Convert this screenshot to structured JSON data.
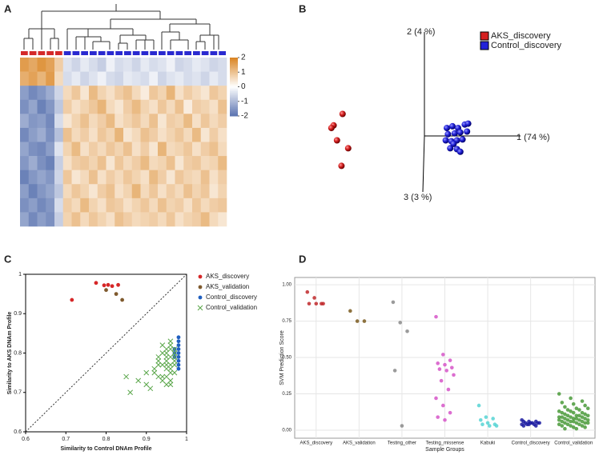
{
  "chart_data": [
    {
      "type": "heatmap",
      "panel_label": "A",
      "zlim": [
        -2,
        2
      ],
      "colorscale": [
        "#5b74b0",
        "#ffffff",
        "#d98320"
      ],
      "colorbar_ticks": [
        2,
        1,
        0,
        -1,
        -2
      ],
      "column_colors": [
        "#d42a2a",
        "#d42a2a",
        "#d42a2a",
        "#d42a2a",
        "#d42a2a",
        "#2a2ad0",
        "#2a2ad0",
        "#2a2ad0",
        "#2a2ad0",
        "#2a2ad0",
        "#2a2ad0",
        "#2a2ad0",
        "#2a2ad0",
        "#2a2ad0",
        "#2a2ad0",
        "#2a2ad0",
        "#2a2ad0",
        "#2a2ad0",
        "#2a2ad0",
        "#2a2ad0",
        "#2a2ad0",
        "#2a2ad0",
        "#2a2ad0",
        "#2a2ad0"
      ],
      "values": [
        [
          1.6,
          1.4,
          1.7,
          1.5,
          0.8,
          -0.4,
          -0.6,
          -0.3,
          -0.5,
          -0.7,
          -0.2,
          -0.5,
          -0.4,
          -0.6,
          -0.3,
          -0.5,
          -0.4,
          -0.2,
          -0.6,
          -0.5,
          -0.3,
          -0.4,
          -0.6,
          -0.5
        ],
        [
          1.3,
          1.5,
          1.2,
          1.6,
          0.6,
          -0.5,
          -0.3,
          -0.6,
          -0.4,
          -0.2,
          -0.5,
          -0.6,
          -0.3,
          -0.4,
          -0.5,
          -0.2,
          -0.6,
          -0.4,
          -0.3,
          -0.5,
          -0.4,
          -0.6,
          -0.3,
          -0.5
        ],
        [
          -1.4,
          -1.7,
          -1.5,
          -1.2,
          -0.6,
          0.6,
          0.9,
          0.4,
          1.1,
          0.7,
          0.5,
          0.8,
          1.0,
          0.6,
          0.3,
          0.9,
          0.7,
          1.2,
          0.5,
          0.8,
          0.6,
          0.4,
          0.9,
          0.7
        ],
        [
          -1.6,
          -1.3,
          -1.8,
          -1.5,
          -0.8,
          0.8,
          0.5,
          0.7,
          0.9,
          1.2,
          0.6,
          0.4,
          0.8,
          1.1,
          0.7,
          0.5,
          0.9,
          0.6,
          1.0,
          0.3,
          0.8,
          0.7,
          0.5,
          1.0
        ],
        [
          -1.2,
          -1.5,
          -1.4,
          -1.7,
          -0.5,
          0.4,
          0.7,
          1.0,
          0.6,
          0.8,
          1.1,
          0.5,
          0.7,
          0.9,
          0.6,
          1.0,
          0.4,
          0.8,
          0.7,
          1.1,
          0.5,
          0.9,
          0.6,
          0.8
        ],
        [
          -1.7,
          -1.4,
          -1.2,
          -1.6,
          -0.9,
          1.0,
          0.6,
          0.8,
          0.5,
          0.9,
          0.7,
          1.2,
          0.4,
          0.6,
          1.0,
          0.8,
          0.5,
          0.7,
          0.9,
          0.6,
          1.1,
          0.4,
          0.8,
          0.5
        ],
        [
          -1.3,
          -1.6,
          -1.7,
          -1.4,
          -0.4,
          0.7,
          1.1,
          0.5,
          0.8,
          0.6,
          0.9,
          0.7,
          1.0,
          0.5,
          0.8,
          0.4,
          1.2,
          0.6,
          0.7,
          0.9,
          0.5,
          0.8,
          1.0,
          0.6
        ],
        [
          -1.5,
          -1.2,
          -1.6,
          -1.8,
          -0.7,
          0.5,
          0.8,
          0.9,
          0.7,
          1.0,
          0.4,
          0.9,
          0.6,
          0.8,
          1.1,
          0.6,
          0.7,
          1.0,
          0.4,
          0.8,
          0.9,
          0.6,
          0.7,
          1.1
        ],
        [
          -1.8,
          -1.5,
          -1.3,
          -1.5,
          -0.6,
          0.9,
          0.4,
          0.6,
          1.0,
          0.5,
          0.8,
          0.6,
          0.9,
          0.7,
          0.5,
          1.1,
          0.8,
          0.4,
          0.9,
          0.7,
          0.6,
          1.0,
          0.5,
          0.8
        ],
        [
          -1.4,
          -1.8,
          -1.5,
          -1.3,
          -0.8,
          0.6,
          0.9,
          0.7,
          0.4,
          0.8,
          1.0,
          0.5,
          0.7,
          1.2,
          0.6,
          0.9,
          0.5,
          0.8,
          0.6,
          1.0,
          0.7,
          0.9,
          0.4,
          0.7
        ],
        [
          -1.6,
          -1.4,
          -1.7,
          -1.5,
          -0.5,
          0.8,
          0.6,
          1.1,
          0.7,
          0.5,
          0.9,
          0.8,
          0.5,
          0.7,
          0.9,
          0.6,
          1.0,
          0.7,
          0.8,
          0.5,
          0.9,
          0.6,
          0.8,
          0.9
        ],
        [
          -1.3,
          -1.7,
          -1.4,
          -1.6,
          -0.7,
          0.7,
          1.0,
          0.6,
          0.9,
          0.7,
          0.5,
          1.0,
          0.8,
          0.6,
          0.7,
          0.8,
          0.6,
          0.9,
          0.5,
          0.7,
          0.8,
          1.1,
          0.6,
          0.4
        ]
      ]
    },
    {
      "type": "pca",
      "panel_label": "B",
      "axis_labels": [
        "1 (74 %)",
        "2 (4 %)",
        "3 (3 %)"
      ],
      "xlim": [
        -1,
        1
      ],
      "ylim": [
        -1,
        1
      ],
      "series": [
        {
          "name": "AKS_discovery",
          "color": "#d42020",
          "x": [
            -0.73,
            -0.81,
            -0.83,
            -0.78,
            -0.68,
            -0.74
          ],
          "y": [
            0.25,
            0.12,
            0.09,
            -0.05,
            -0.14,
            -0.34
          ]
        },
        {
          "name": "Control_discovery",
          "color": "#2222d8",
          "x": [
            0.2,
            0.25,
            0.3,
            0.36,
            0.39,
            0.21,
            0.27,
            0.32,
            0.38,
            0.19,
            0.24,
            0.29,
            0.34,
            0.23,
            0.29,
            0.32,
            0.26
          ],
          "y": [
            0.09,
            0.11,
            0.09,
            0.13,
            0.14,
            0.02,
            0.03,
            0.04,
            0.05,
            -0.05,
            -0.06,
            -0.05,
            -0.04,
            -0.14,
            -0.15,
            -0.18,
            -0.09
          ]
        }
      ]
    },
    {
      "type": "scatter",
      "panel_label": "C",
      "x_label": "Similarity to Control DNAm Profile",
      "y_label": "Similarity to AKS DNAm Profile",
      "xlim": [
        0.6,
        1
      ],
      "ylim": [
        0.6,
        1
      ],
      "xticks": [
        0.6,
        0.7,
        0.8,
        0.9,
        1
      ],
      "yticks": [
        0.6,
        0.7,
        0.8,
        0.9,
        1
      ],
      "series": [
        {
          "name": "AKS_discovery",
          "color": "#d62728",
          "marker": "circle",
          "x": [
            0.715,
            0.775,
            0.795,
            0.805,
            0.815,
            0.83
          ],
          "y": [
            0.935,
            0.978,
            0.972,
            0.973,
            0.97,
            0.973
          ]
        },
        {
          "name": "AKS_validation",
          "color": "#7f5a2e",
          "marker": "circle",
          "x": [
            0.8,
            0.825,
            0.84
          ],
          "y": [
            0.96,
            0.95,
            0.935
          ]
        },
        {
          "name": "Control_discovery",
          "color": "#1f5fbf",
          "marker": "circle",
          "x": [
            0.98,
            0.98,
            0.97,
            0.98,
            0.98,
            0.97,
            0.98,
            0.98,
            0.97,
            0.98,
            0.98,
            0.98
          ],
          "y": [
            0.84,
            0.82,
            0.81,
            0.8,
            0.79,
            0.79,
            0.78,
            0.77,
            0.8,
            0.76,
            0.81,
            0.83
          ]
        },
        {
          "name": "Control_validation",
          "color": "#5aa64a",
          "marker": "x",
          "x": [
            0.96,
            0.95,
            0.97,
            0.94,
            0.96,
            0.93,
            0.95,
            0.97,
            0.96,
            0.94,
            0.92,
            0.95,
            0.96,
            0.97,
            0.93,
            0.95,
            0.94,
            0.96,
            0.91,
            0.95,
            0.97,
            0.96,
            0.94,
            0.93,
            0.95,
            0.96,
            0.97,
            0.92,
            0.94,
            0.96,
            0.95,
            0.93,
            0.88,
            0.9,
            0.86,
            0.9,
            0.85,
            0.96,
            0.97,
            0.95
          ],
          "y": [
            0.82,
            0.81,
            0.8,
            0.8,
            0.79,
            0.79,
            0.78,
            0.78,
            0.77,
            0.77,
            0.76,
            0.76,
            0.75,
            0.75,
            0.74,
            0.74,
            0.73,
            0.72,
            0.71,
            0.8,
            0.81,
            0.83,
            0.82,
            0.78,
            0.77,
            0.76,
            0.79,
            0.75,
            0.74,
            0.73,
            0.72,
            0.77,
            0.73,
            0.75,
            0.7,
            0.72,
            0.74,
            0.81,
            0.77,
            0.79
          ]
        }
      ]
    },
    {
      "type": "strip",
      "panel_label": "D",
      "x_label": "Sample Groups",
      "y_label": "SVM Prediction Score",
      "ylim": [
        -0.055,
        1.05
      ],
      "yticks": [
        {
          "value": 0,
          "label": "0.00"
        },
        {
          "value": 0.25,
          "label": "0.25"
        },
        {
          "value": 0.5,
          "label": "0.50"
        },
        {
          "value": 0.75,
          "label": "0.75"
        },
        {
          "value": 1,
          "label": "1.00"
        }
      ],
      "grid": true,
      "categories": [
        "AKS_discovery",
        "AKS_validation",
        "Testing_other",
        "Testing_missense",
        "Kabuki",
        "Control_discovery",
        "Control_validation"
      ],
      "colors": [
        "#c0282a",
        "#7a5a1e",
        "#8a8a8a",
        "#d655c8",
        "#56d3d3",
        "#1a1aa0",
        "#4a9a3a"
      ],
      "values": [
        [
          0.95,
          0.91,
          0.87,
          0.87,
          0.87,
          0.87
        ],
        [
          0.82,
          0.75,
          0.75
        ],
        [
          0.88,
          0.74,
          0.68,
          0.41,
          0.03
        ],
        [
          0.78,
          0.52,
          0.48,
          0.46,
          0.45,
          0.43,
          0.42,
          0.41,
          0.38,
          0.34,
          0.28,
          0.22,
          0.17,
          0.12,
          0.09,
          0.07
        ],
        [
          0.17,
          0.09,
          0.08,
          0.07,
          0.05,
          0.04,
          0.04,
          0.03,
          0.03
        ],
        [
          0.07,
          0.06,
          0.06,
          0.06,
          0.05,
          0.05,
          0.05,
          0.05,
          0.05,
          0.04,
          0.04,
          0.04,
          0.04,
          0.03,
          0.03
        ],
        [
          0.25,
          0.22,
          0.2,
          0.19,
          0.18,
          0.17,
          0.16,
          0.15,
          0.15,
          0.14,
          0.14,
          0.13,
          0.13,
          0.12,
          0.12,
          0.12,
          0.11,
          0.11,
          0.1,
          0.1,
          0.1,
          0.1,
          0.09,
          0.09,
          0.09,
          0.09,
          0.08,
          0.08,
          0.08,
          0.08,
          0.07,
          0.07,
          0.07,
          0.07,
          0.06,
          0.06,
          0.06,
          0.06,
          0.05,
          0.05,
          0.05,
          0.05,
          0.04,
          0.04,
          0.04,
          0.03,
          0.03,
          0.03,
          0.02,
          0.02,
          0.01,
          0.01
        ]
      ]
    }
  ]
}
